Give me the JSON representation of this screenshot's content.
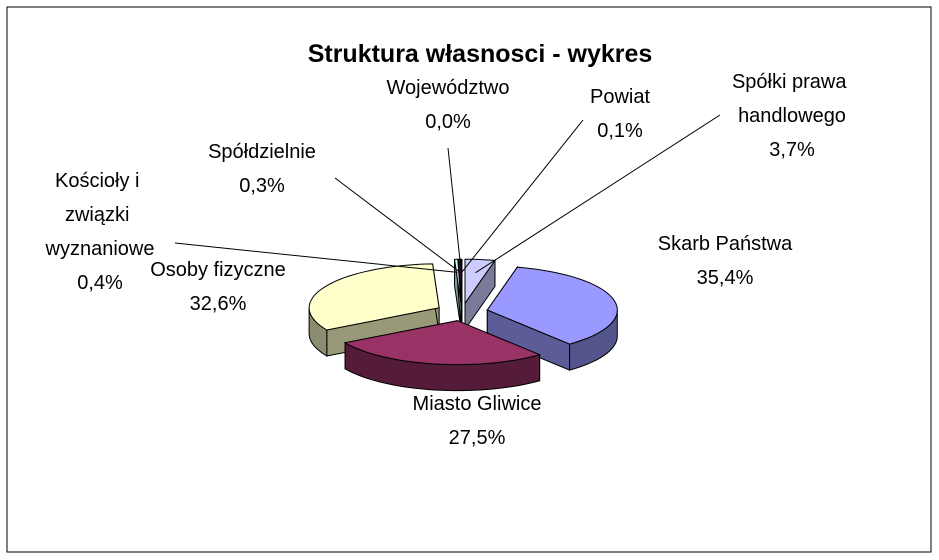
{
  "chart_data": {
    "type": "pie",
    "title": "Struktura własnosci - wykres",
    "categories": [
      "Skarb Państwa",
      "Miasto Gliwice",
      "Osoby fizyczne",
      "Kościoły i związki wyznaniowe",
      "Spółdzielnie",
      "Województwo",
      "Powiat",
      "Spółki prawa handlowego"
    ],
    "values": [
      35.4,
      27.5,
      32.6,
      0.4,
      0.3,
      0.0,
      0.1,
      3.7
    ],
    "value_labels": [
      "35,4%",
      "27,5%",
      "32,6%",
      "0,4%",
      "0,3%",
      "0,0%",
      "0,1%",
      "3,7%"
    ],
    "colors": [
      "#9999ff",
      "#993366",
      "#ffffcc",
      "#ccffff",
      "#660066",
      "#ff8080",
      "#0066cc",
      "#ccccff"
    ]
  }
}
